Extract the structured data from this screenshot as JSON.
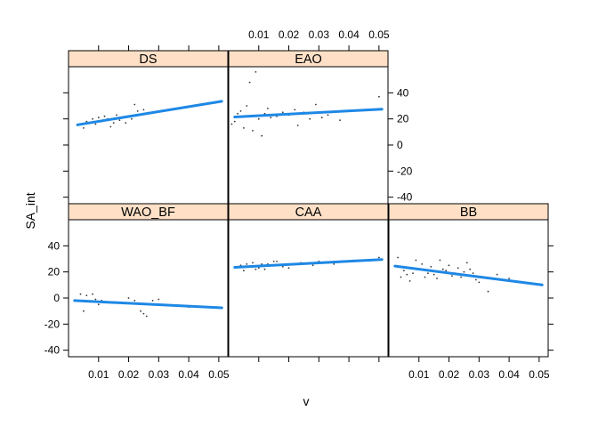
{
  "chart_data": {
    "type": "scatter",
    "layout": "lattice 3x2 panels",
    "xlabel": "v",
    "ylabel": "SA_int",
    "xlim": [
      0.0,
      0.053
    ],
    "ylim": [
      -45,
      60
    ],
    "x_ticks": [
      0.01,
      0.02,
      0.03,
      0.04,
      0.05
    ],
    "x_tick_labels": [
      "0.01",
      "0.02",
      "0.03",
      "0.04",
      "0.05"
    ],
    "y_ticks": [
      -40,
      -20,
      0,
      20,
      40
    ],
    "y_tick_labels": [
      "-40",
      "-20",
      "0",
      "20",
      "40"
    ],
    "colors": {
      "fit_line": "#1e88e5",
      "points": "#333333",
      "strip": "#ffe0c7",
      "frame": "#000000"
    },
    "panels": [
      {
        "name": "DS",
        "row": 1,
        "col": 1,
        "points": [
          [
            0.003,
            15
          ],
          [
            0.005,
            13
          ],
          [
            0.006,
            18
          ],
          [
            0.007,
            17
          ],
          [
            0.008,
            20
          ],
          [
            0.009,
            16
          ],
          [
            0.01,
            21
          ],
          [
            0.011,
            18
          ],
          [
            0.012,
            22
          ],
          [
            0.013,
            20
          ],
          [
            0.014,
            14
          ],
          [
            0.015,
            17
          ],
          [
            0.016,
            23
          ],
          [
            0.017,
            19
          ],
          [
            0.019,
            17
          ],
          [
            0.02,
            22
          ],
          [
            0.021,
            20
          ],
          [
            0.022,
            31
          ],
          [
            0.023,
            26
          ],
          [
            0.025,
            27
          ]
        ],
        "fit": {
          "x": [
            0.003,
            0.051
          ],
          "y": [
            15.5,
            33.5
          ]
        }
      },
      {
        "name": "EAO",
        "row": 1,
        "col": 2,
        "points": [
          [
            0.001,
            16
          ],
          [
            0.002,
            18
          ],
          [
            0.003,
            24
          ],
          [
            0.004,
            26
          ],
          [
            0.005,
            13
          ],
          [
            0.006,
            30
          ],
          [
            0.007,
            48
          ],
          [
            0.008,
            11
          ],
          [
            0.009,
            56
          ],
          [
            0.01,
            20
          ],
          [
            0.011,
            7
          ],
          [
            0.012,
            24
          ],
          [
            0.013,
            28
          ],
          [
            0.014,
            21
          ],
          [
            0.016,
            22
          ],
          [
            0.018,
            25
          ],
          [
            0.02,
            23
          ],
          [
            0.022,
            27
          ],
          [
            0.023,
            15
          ],
          [
            0.025,
            25
          ],
          [
            0.027,
            20
          ],
          [
            0.029,
            31
          ],
          [
            0.031,
            21
          ],
          [
            0.033,
            23
          ],
          [
            0.037,
            19
          ],
          [
            0.04,
            26
          ],
          [
            0.05,
            37
          ]
        ],
        "fit": {
          "x": [
            0.002,
            0.051
          ],
          "y": [
            21.5,
            27.5
          ]
        }
      },
      {
        "name": "WAO_BF",
        "row": 2,
        "col": 1,
        "points": [
          [
            0.004,
            3
          ],
          [
            0.005,
            -10
          ],
          [
            0.006,
            2
          ],
          [
            0.007,
            -3
          ],
          [
            0.008,
            3
          ],
          [
            0.009,
            -1
          ],
          [
            0.01,
            -5
          ],
          [
            0.011,
            -2
          ],
          [
            0.02,
            0
          ],
          [
            0.022,
            -2
          ],
          [
            0.024,
            -10
          ],
          [
            0.025,
            -12
          ],
          [
            0.026,
            -14
          ],
          [
            0.028,
            -2
          ],
          [
            0.03,
            -1
          ],
          [
            0.04,
            -7
          ]
        ],
        "fit": {
          "x": [
            0.002,
            0.051
          ],
          "y": [
            -2.0,
            -7.5
          ]
        }
      },
      {
        "name": "CAA",
        "row": 2,
        "col": 2,
        "points": [
          [
            0.004,
            25
          ],
          [
            0.005,
            21
          ],
          [
            0.006,
            26
          ],
          [
            0.007,
            24
          ],
          [
            0.008,
            27
          ],
          [
            0.009,
            22
          ],
          [
            0.01,
            23
          ],
          [
            0.011,
            26
          ],
          [
            0.012,
            22
          ],
          [
            0.013,
            26
          ],
          [
            0.014,
            25
          ],
          [
            0.015,
            28
          ],
          [
            0.016,
            28
          ],
          [
            0.018,
            24
          ],
          [
            0.02,
            23
          ],
          [
            0.024,
            27
          ],
          [
            0.028,
            25
          ],
          [
            0.03,
            28
          ],
          [
            0.035,
            26
          ],
          [
            0.05,
            31
          ]
        ],
        "fit": {
          "x": [
            0.002,
            0.051
          ],
          "y": [
            23.5,
            29.5
          ]
        }
      },
      {
        "name": "BB",
        "row": 2,
        "col": 3,
        "points": [
          [
            0.003,
            31
          ],
          [
            0.004,
            16
          ],
          [
            0.005,
            21
          ],
          [
            0.006,
            18
          ],
          [
            0.007,
            13
          ],
          [
            0.008,
            19
          ],
          [
            0.009,
            29
          ],
          [
            0.01,
            22
          ],
          [
            0.011,
            26
          ],
          [
            0.012,
            16
          ],
          [
            0.013,
            19
          ],
          [
            0.014,
            24
          ],
          [
            0.015,
            18
          ],
          [
            0.016,
            15
          ],
          [
            0.017,
            29
          ],
          [
            0.018,
            22
          ],
          [
            0.019,
            21
          ],
          [
            0.02,
            25
          ],
          [
            0.021,
            17
          ],
          [
            0.022,
            19
          ],
          [
            0.023,
            23
          ],
          [
            0.024,
            16
          ],
          [
            0.025,
            20
          ],
          [
            0.026,
            27
          ],
          [
            0.027,
            22
          ],
          [
            0.028,
            19
          ],
          [
            0.029,
            14
          ],
          [
            0.03,
            12
          ],
          [
            0.033,
            5
          ],
          [
            0.036,
            18
          ],
          [
            0.04,
            15
          ],
          [
            0.045,
            12
          ]
        ],
        "fit": {
          "x": [
            0.002,
            0.051
          ],
          "y": [
            24.5,
            10.0
          ]
        }
      }
    ]
  }
}
